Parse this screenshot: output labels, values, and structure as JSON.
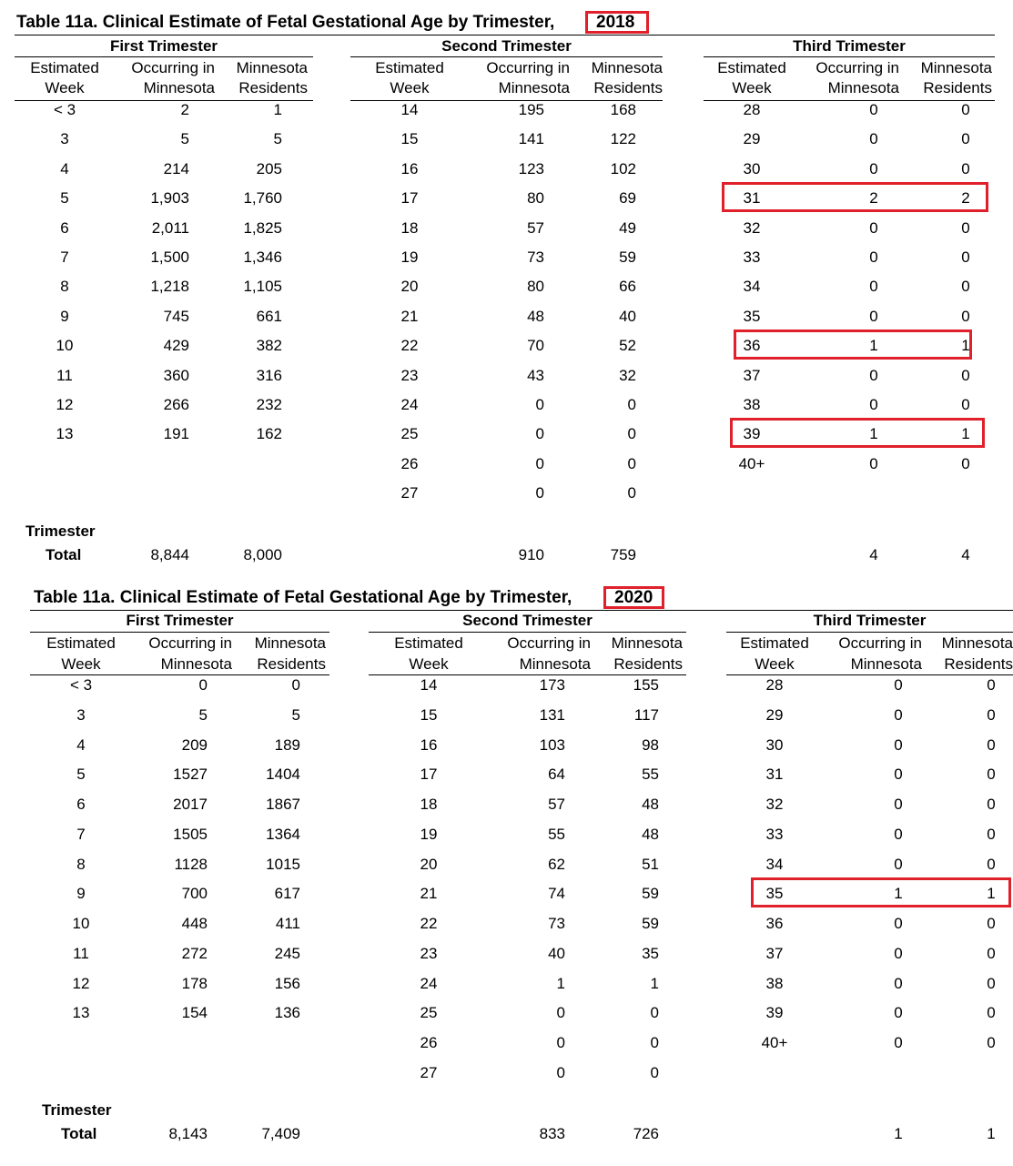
{
  "tables": [
    {
      "title": "Table 11a. Clinical Estimate of Fetal Gestational Age by Trimester,",
      "year": "2018",
      "trimesters": {
        "first": "First Trimester",
        "second": "Second Trimester",
        "third": "Third Trimester"
      },
      "headers": {
        "week_line1": "Estimated",
        "week_line2": "Week",
        "occ_line1": "Occurring in",
        "occ_line2": "Minnesota",
        "res_line1": "Minnesota",
        "res_line2": "Residents"
      },
      "first": [
        [
          "< 3",
          "2",
          "1"
        ],
        [
          "3",
          "5",
          "5"
        ],
        [
          "4",
          "214",
          "205"
        ],
        [
          "5",
          "1,903",
          "1,760"
        ],
        [
          "6",
          "2,011",
          "1,825"
        ],
        [
          "7",
          "1,500",
          "1,346"
        ],
        [
          "8",
          "1,218",
          "1,105"
        ],
        [
          "9",
          "745",
          "661"
        ],
        [
          "10",
          "429",
          "382"
        ],
        [
          "11",
          "360",
          "316"
        ],
        [
          "12",
          "266",
          "232"
        ],
        [
          "13",
          "191",
          "162"
        ]
      ],
      "second": [
        [
          "14",
          "195",
          "168"
        ],
        [
          "15",
          "141",
          "122"
        ],
        [
          "16",
          "123",
          "102"
        ],
        [
          "17",
          "80",
          "69"
        ],
        [
          "18",
          "57",
          "49"
        ],
        [
          "19",
          "73",
          "59"
        ],
        [
          "20",
          "80",
          "66"
        ],
        [
          "21",
          "48",
          "40"
        ],
        [
          "22",
          "70",
          "52"
        ],
        [
          "23",
          "43",
          "32"
        ],
        [
          "24",
          "0",
          "0"
        ],
        [
          "25",
          "0",
          "0"
        ],
        [
          "26",
          "0",
          "0"
        ],
        [
          "27",
          "0",
          "0"
        ]
      ],
      "third": [
        [
          "28",
          "0",
          "0"
        ],
        [
          "29",
          "0",
          "0"
        ],
        [
          "30",
          "0",
          "0"
        ],
        [
          "31",
          "2",
          "2"
        ],
        [
          "32",
          "0",
          "0"
        ],
        [
          "33",
          "0",
          "0"
        ],
        [
          "34",
          "0",
          "0"
        ],
        [
          "35",
          "0",
          "0"
        ],
        [
          "36",
          "1",
          "1"
        ],
        [
          "37",
          "0",
          "0"
        ],
        [
          "38",
          "0",
          "0"
        ],
        [
          "39",
          "1",
          "1"
        ],
        [
          "40+",
          "0",
          "0"
        ]
      ],
      "total_label_1": "Trimester",
      "total_label_2": "Total",
      "totals": {
        "first_occ": "8,844",
        "first_res": "8,000",
        "second_occ": "910",
        "second_res": "759",
        "third_occ": "4",
        "third_res": "4"
      },
      "highlight_rows_third": [
        3,
        8,
        11
      ]
    },
    {
      "title": "Table 11a. Clinical Estimate of Fetal Gestational Age by Trimester,",
      "year": "2020",
      "trimesters": {
        "first": "First Trimester",
        "second": "Second Trimester",
        "third": "Third Trimester"
      },
      "headers": {
        "week_line1": "Estimated",
        "week_line2": "Week",
        "occ_line1": "Occurring in",
        "occ_line2": "Minnesota",
        "res_line1": "Minnesota",
        "res_line2": "Residents"
      },
      "first": [
        [
          "< 3",
          "0",
          "0"
        ],
        [
          "3",
          "5",
          "5"
        ],
        [
          "4",
          "209",
          "189"
        ],
        [
          "5",
          "1527",
          "1404"
        ],
        [
          "6",
          "2017",
          "1867"
        ],
        [
          "7",
          "1505",
          "1364"
        ],
        [
          "8",
          "1128",
          "1015"
        ],
        [
          "9",
          "700",
          "617"
        ],
        [
          "10",
          "448",
          "411"
        ],
        [
          "11",
          "272",
          "245"
        ],
        [
          "12",
          "178",
          "156"
        ],
        [
          "13",
          "154",
          "136"
        ]
      ],
      "second": [
        [
          "14",
          "173",
          "155"
        ],
        [
          "15",
          "131",
          "117"
        ],
        [
          "16",
          "103",
          "98"
        ],
        [
          "17",
          "64",
          "55"
        ],
        [
          "18",
          "57",
          "48"
        ],
        [
          "19",
          "55",
          "48"
        ],
        [
          "20",
          "62",
          "51"
        ],
        [
          "21",
          "74",
          "59"
        ],
        [
          "22",
          "73",
          "59"
        ],
        [
          "23",
          "40",
          "35"
        ],
        [
          "24",
          "1",
          "1"
        ],
        [
          "25",
          "0",
          "0"
        ],
        [
          "26",
          "0",
          "0"
        ],
        [
          "27",
          "0",
          "0"
        ]
      ],
      "third": [
        [
          "28",
          "0",
          "0"
        ],
        [
          "29",
          "0",
          "0"
        ],
        [
          "30",
          "0",
          "0"
        ],
        [
          "31",
          "0",
          "0"
        ],
        [
          "32",
          "0",
          "0"
        ],
        [
          "33",
          "0",
          "0"
        ],
        [
          "34",
          "0",
          "0"
        ],
        [
          "35",
          "1",
          "1"
        ],
        [
          "36",
          "0",
          "0"
        ],
        [
          "37",
          "0",
          "0"
        ],
        [
          "38",
          "0",
          "0"
        ],
        [
          "39",
          "0",
          "0"
        ],
        [
          "40+",
          "0",
          "0"
        ]
      ],
      "total_label_1": "Trimester",
      "total_label_2": "Total",
      "totals": {
        "first_occ": "8,143",
        "first_res": "7,409",
        "second_occ": "833",
        "second_res": "726",
        "third_occ": "1",
        "third_res": "1"
      },
      "highlight_rows_third": [
        7
      ]
    }
  ],
  "highlight_color": "#e0202a"
}
